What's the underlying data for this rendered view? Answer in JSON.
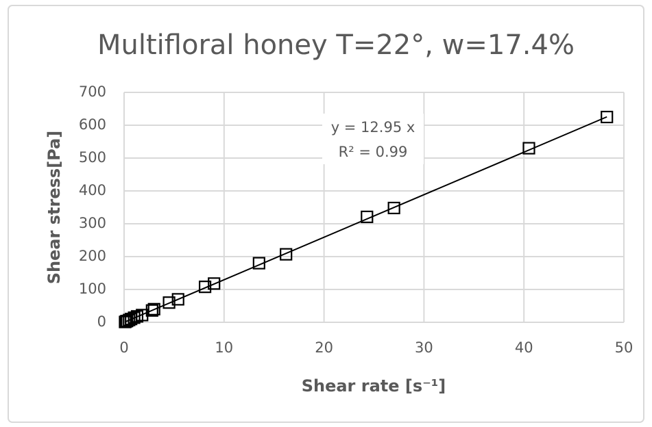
{
  "chart_data": {
    "type": "scatter",
    "title": "Multifloral honey T=22°, w=17.4%",
    "x_label": "Shear rate [s⁻¹]",
    "y_label": "Shear stress[Pa]",
    "series": [
      {
        "name": "Shear stress",
        "color": "#000000",
        "x": [
          0.1,
          0.2,
          0.3,
          0.5,
          0.7,
          1.0,
          1.3,
          1.8,
          2.8,
          3.0,
          4.5,
          5.4,
          8.1,
          9.0,
          13.5,
          16.2,
          24.3,
          27.0,
          40.5,
          48.3
        ],
        "values": [
          1,
          3,
          4,
          7,
          10,
          14,
          18,
          22,
          36,
          40,
          60,
          70,
          108,
          118,
          180,
          207,
          321,
          348,
          530,
          625
        ]
      }
    ],
    "trendline": {
      "slope": 12.95,
      "label": [
        "y = 12.95 x",
        "R² = 0.99"
      ]
    },
    "xlim": [
      0,
      50
    ],
    "xticks": [
      0,
      10,
      20,
      30,
      40,
      50
    ],
    "ylim": [
      0,
      700
    ],
    "yticks": [
      0,
      100,
      200,
      300,
      400,
      500,
      600,
      700
    ],
    "grid": true
  }
}
